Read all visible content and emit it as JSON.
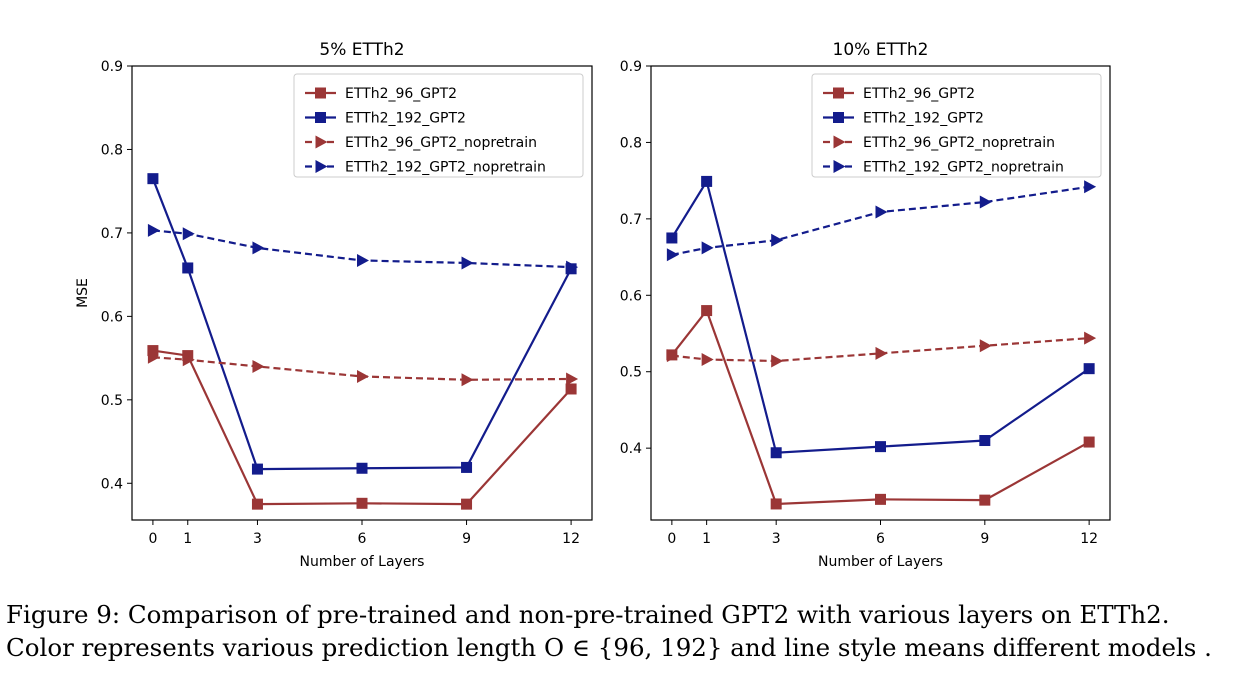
{
  "figure": {
    "caption_prefix": "Figure 9: Comparison of pre-trained and non-pre-trained GPT2 with various layers on ETTh2. Color represents various prediction length",
    "caption_math": "O ∈ {96, 192}",
    "caption_suffix": "and line style means different models ."
  },
  "colors": {
    "red": "#9b3636",
    "blue": "#131c8c"
  },
  "chart_data": [
    {
      "type": "line",
      "title": "5% ETTh2",
      "xlabel": "Number of Layers",
      "ylabel": "MSE",
      "x": [
        0,
        1,
        3,
        6,
        9,
        12
      ],
      "xticks": [
        0,
        1,
        3,
        6,
        9,
        12
      ],
      "yticks": [
        0.4,
        0.5,
        0.6,
        0.7,
        0.8,
        0.9
      ],
      "xlim": [
        -0.6,
        12.6
      ],
      "ylim": [
        0.356,
        0.9
      ],
      "legend_position": "top-right",
      "series": [
        {
          "name": "ETTh2_96_GPT2",
          "color": "red",
          "style": "solid",
          "marker": "square",
          "values": [
            0.559,
            0.553,
            0.375,
            0.376,
            0.375,
            0.513
          ]
        },
        {
          "name": "ETTh2_192_GPT2",
          "color": "blue",
          "style": "solid",
          "marker": "square",
          "values": [
            0.765,
            0.658,
            0.417,
            0.418,
            0.419,
            0.657
          ]
        },
        {
          "name": "ETTh2_96_GPT2_nopretrain",
          "color": "red",
          "style": "dashed",
          "marker": "triangle-right",
          "values": [
            0.551,
            0.548,
            0.54,
            0.528,
            0.524,
            0.525
          ]
        },
        {
          "name": "ETTh2_192_GPT2_nopretrain",
          "color": "blue",
          "style": "dashed",
          "marker": "triangle-right",
          "values": [
            0.703,
            0.699,
            0.682,
            0.667,
            0.664,
            0.659
          ]
        }
      ]
    },
    {
      "type": "line",
      "title": "10% ETTh2",
      "xlabel": "Number of Layers",
      "ylabel": "",
      "x": [
        0,
        1,
        3,
        6,
        9,
        12
      ],
      "xticks": [
        0,
        1,
        3,
        6,
        9,
        12
      ],
      "yticks": [
        0.4,
        0.5,
        0.6,
        0.7,
        0.8,
        0.9
      ],
      "xlim": [
        -0.6,
        12.6
      ],
      "ylim": [
        0.306,
        0.9
      ],
      "legend_position": "top-right",
      "series": [
        {
          "name": "ETTh2_96_GPT2",
          "color": "red",
          "style": "solid",
          "marker": "square",
          "values": [
            0.522,
            0.58,
            0.327,
            0.333,
            0.332,
            0.408
          ]
        },
        {
          "name": "ETTh2_192_GPT2",
          "color": "blue",
          "style": "solid",
          "marker": "square",
          "values": [
            0.675,
            0.749,
            0.394,
            0.402,
            0.41,
            0.504
          ]
        },
        {
          "name": "ETTh2_96_GPT2_nopretrain",
          "color": "red",
          "style": "dashed",
          "marker": "triangle-right",
          "values": [
            0.521,
            0.516,
            0.514,
            0.524,
            0.534,
            0.544
          ]
        },
        {
          "name": "ETTh2_192_GPT2_nopretrain",
          "color": "blue",
          "style": "dashed",
          "marker": "triangle-right",
          "values": [
            0.653,
            0.662,
            0.672,
            0.709,
            0.722,
            0.742
          ]
        }
      ]
    }
  ]
}
